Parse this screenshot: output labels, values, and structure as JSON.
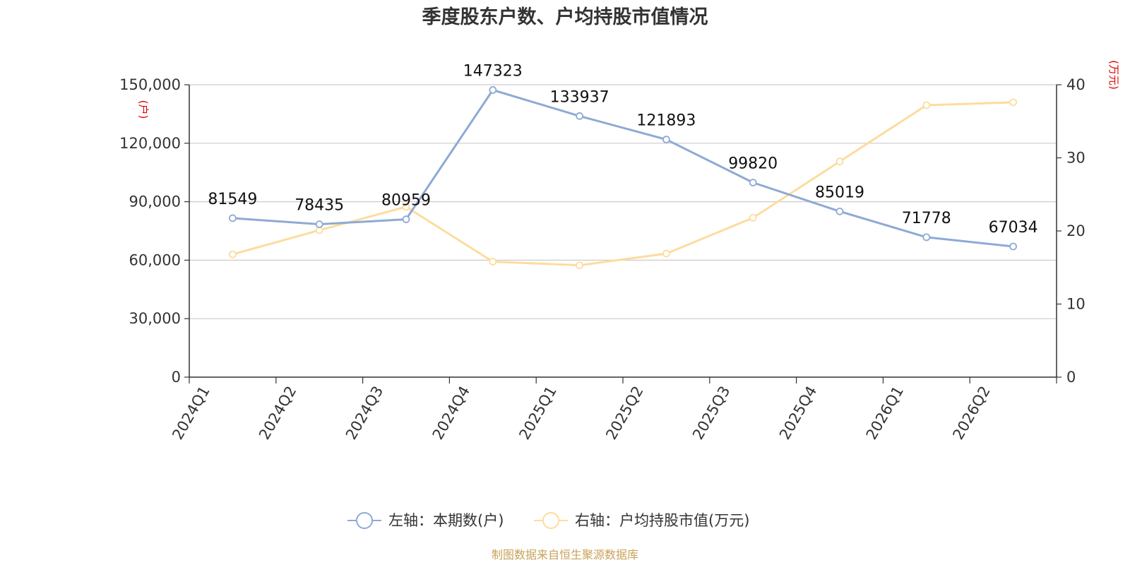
{
  "chart_data": {
    "type": "line",
    "title": "季度股东户数、户均持股市值情况",
    "categories": [
      "2024Q1",
      "2024Q2",
      "2024Q3",
      "2024Q4",
      "2025Q1",
      "2025Q2",
      "2025Q3",
      "2025Q4",
      "2026Q1",
      "2026Q2"
    ],
    "y_left": {
      "unit": "(户)",
      "range": [
        0,
        150000
      ],
      "ticks": [
        "0",
        "30,000",
        "60,000",
        "90,000",
        "120,000",
        "150,000"
      ]
    },
    "y_right": {
      "unit": "(万元)",
      "range": [
        0,
        40
      ],
      "ticks": [
        "0",
        "10",
        "20",
        "30",
        "40"
      ]
    },
    "grid": true,
    "legend_position": "bottom",
    "series": [
      {
        "name": "左轴：本期数(户)",
        "axis": "left",
        "color": "#8eaad4",
        "values": [
          81549,
          78435,
          80959,
          147323,
          133937,
          121893,
          99820,
          85019,
          71778,
          67034
        ],
        "labels": [
          "81549",
          "78435",
          "80959",
          "147323",
          "133937",
          "121893",
          "99820",
          "85019",
          "71778",
          "67034"
        ]
      },
      {
        "name": "右轴：户均持股市值(万元)",
        "axis": "right",
        "color": "#fddc9e",
        "values": [
          16.8,
          20.1,
          23.3,
          15.8,
          15.3,
          16.9,
          21.8,
          29.5,
          37.2,
          37.6
        ]
      }
    ],
    "source": "制图数据来自恒生聚源数据库"
  }
}
